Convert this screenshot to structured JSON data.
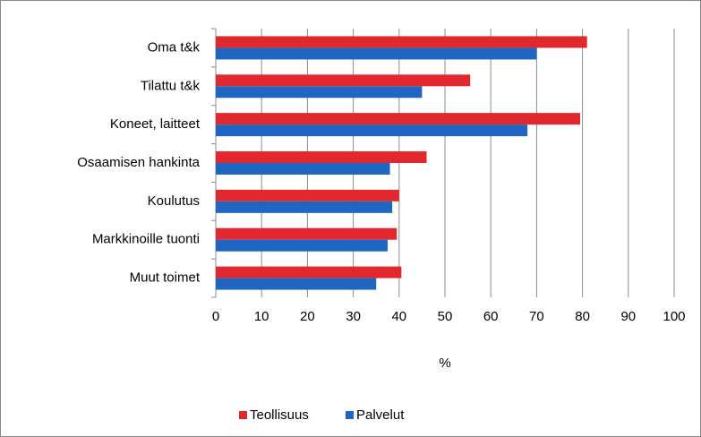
{
  "chart_data": {
    "type": "bar",
    "orientation": "horizontal",
    "categories": [
      "Oma t&k",
      "Tilattu t&k",
      "Koneet, laitteet",
      "Osaamisen hankinta",
      "Koulutus",
      "Markkinoille tuonti",
      "Muut toimet"
    ],
    "series": [
      {
        "name": "Teollisuus",
        "color": "#e0282e",
        "values": [
          81,
          55.5,
          79.5,
          46,
          40,
          39.5,
          40.5
        ]
      },
      {
        "name": "Palvelut",
        "color": "#1f66c2",
        "values": [
          70,
          45,
          68,
          38,
          38.5,
          37.5,
          35
        ]
      }
    ],
    "xlabel": "%",
    "xlim": [
      0,
      100
    ],
    "xticks": [
      0,
      10,
      20,
      30,
      40,
      50,
      60,
      70,
      80,
      90,
      100
    ],
    "grid": true,
    "legend": "bottom"
  }
}
